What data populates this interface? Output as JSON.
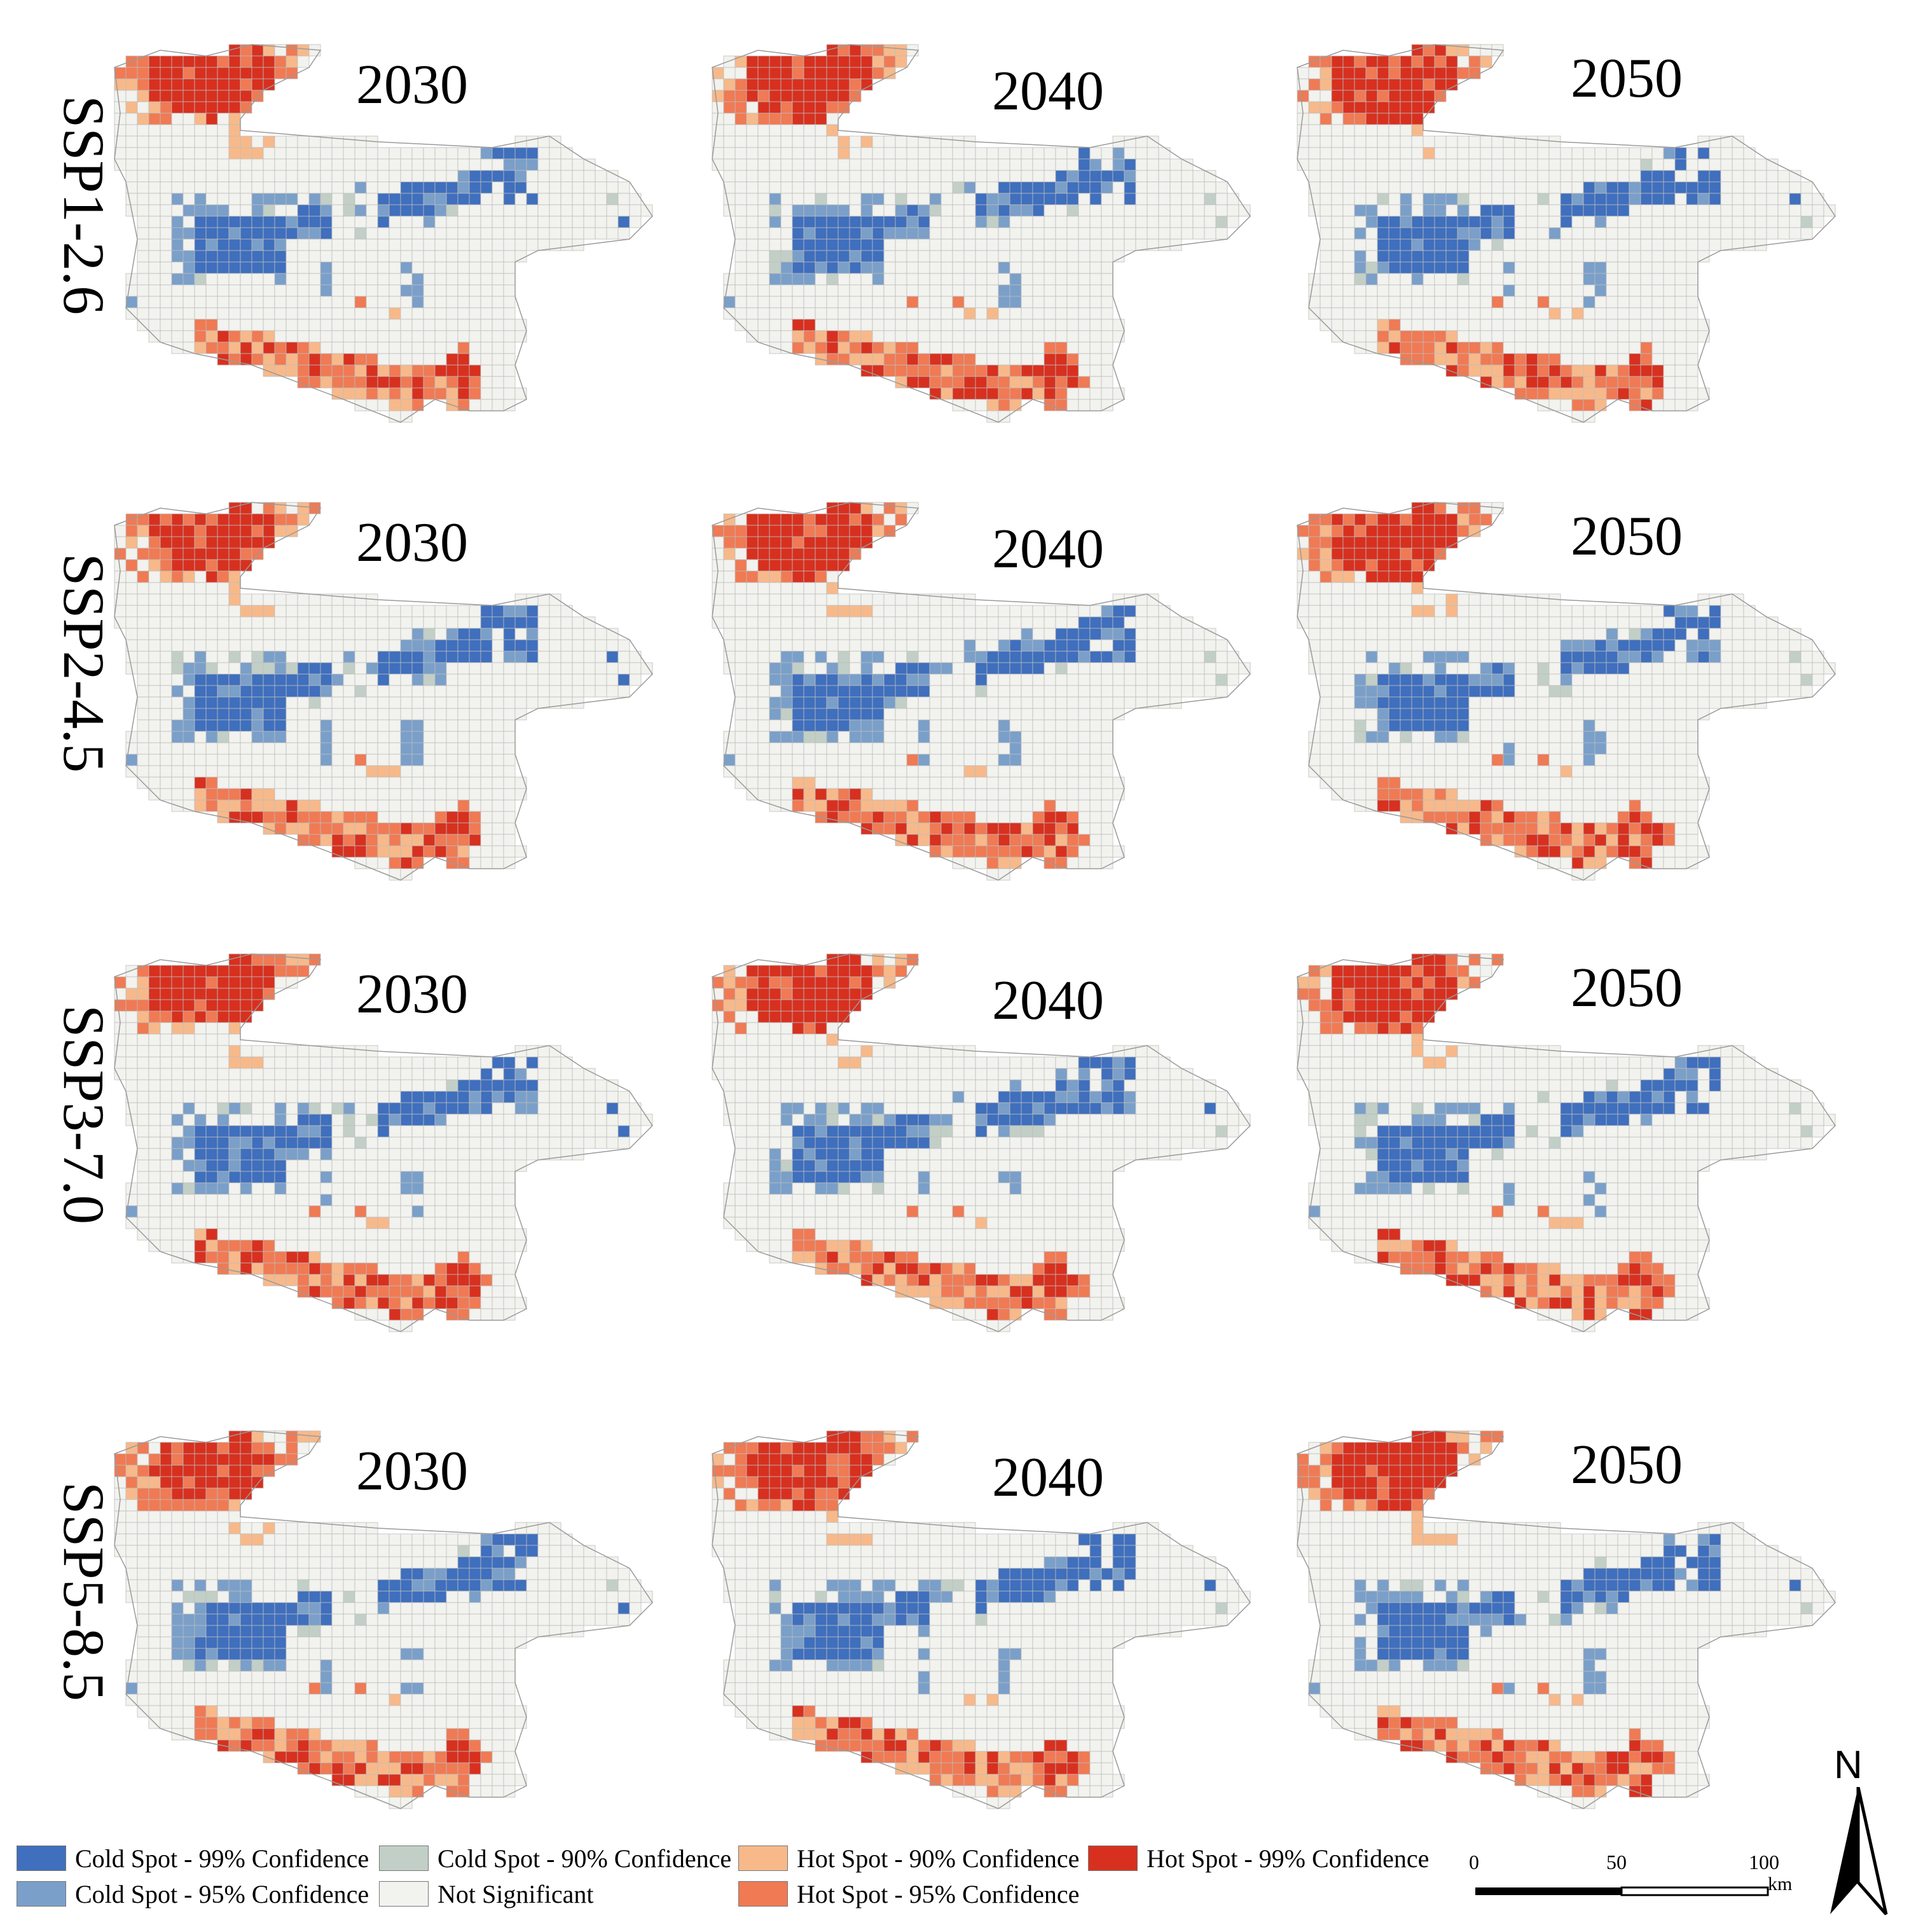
{
  "figure": {
    "scenarios": [
      "SSP1-2.6",
      "SSP2-4.5",
      "SSP3-7.0",
      "SSP5-8.5"
    ],
    "years": [
      "2030",
      "2040",
      "2050"
    ]
  },
  "legend": {
    "items": [
      {
        "id": "cold99",
        "label": "Cold Spot - 99% Confidence",
        "color": "#3f6fbd"
      },
      {
        "id": "cold95",
        "label": "Cold Spot - 95% Confidence",
        "color": "#7a9fc9"
      },
      {
        "id": "cold90",
        "label": "Cold Spot - 90% Confidence",
        "color": "#c2cfc6"
      },
      {
        "id": "ns",
        "label": "Not Significant",
        "color": "#f2f2ee"
      },
      {
        "id": "hot90",
        "label": "Hot Spot - 90% Confidence",
        "color": "#f7b98a"
      },
      {
        "id": "hot95",
        "label": "Hot Spot - 95% Confidence",
        "color": "#ef7a54"
      },
      {
        "id": "hot99",
        "label": "Hot Spot - 99% Confidence",
        "color": "#d7301f"
      }
    ]
  },
  "scale_bar": {
    "ticks": [
      "0",
      "50",
      "100"
    ],
    "unit": "km"
  },
  "north_arrow": {
    "label": "N"
  },
  "colors": {
    "grid_line": "#bdbdbd",
    "outline": "#9a9a9a"
  }
}
